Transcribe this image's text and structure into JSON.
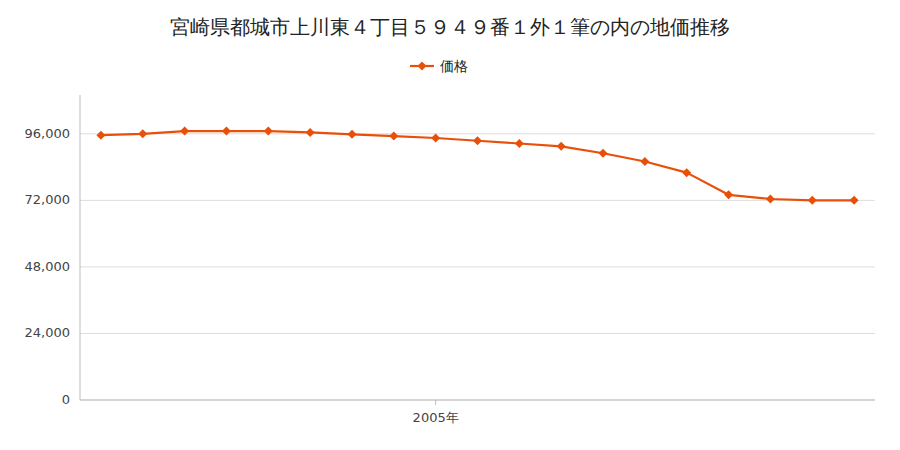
{
  "chart_data": {
    "type": "line",
    "title": "宮崎県都城市上川東４丁目５９４９番１外１筆の内の地価推移",
    "x": [
      1997,
      1998,
      1999,
      2000,
      2001,
      2002,
      2003,
      2004,
      2005,
      2006,
      2007,
      2008,
      2009,
      2010,
      2011,
      2012,
      2013,
      2014,
      2015
    ],
    "series": [
      {
        "name": "価格",
        "color": "#E8500A",
        "marker": "diamond",
        "values": [
          95500,
          96000,
          97000,
          97000,
          97000,
          96500,
          95800,
          95200,
          94500,
          93500,
          92500,
          91500,
          89000,
          86000,
          82000,
          74000,
          72500,
          72000,
          72000
        ]
      }
    ],
    "xlim": [
      1996.5,
      2015.5
    ],
    "xticks": [
      {
        "value": 2005,
        "label": "2005年"
      }
    ],
    "ylim": [
      0,
      110000
    ],
    "yticks": [
      0,
      {
        "value": 24000,
        "label": "24,000"
      },
      {
        "value": 48000,
        "label": "48,000"
      },
      {
        "value": 72000,
        "label": "72,000"
      },
      {
        "value": 96000,
        "label": "96,000"
      }
    ],
    "grid": true,
    "legend": "top"
  }
}
